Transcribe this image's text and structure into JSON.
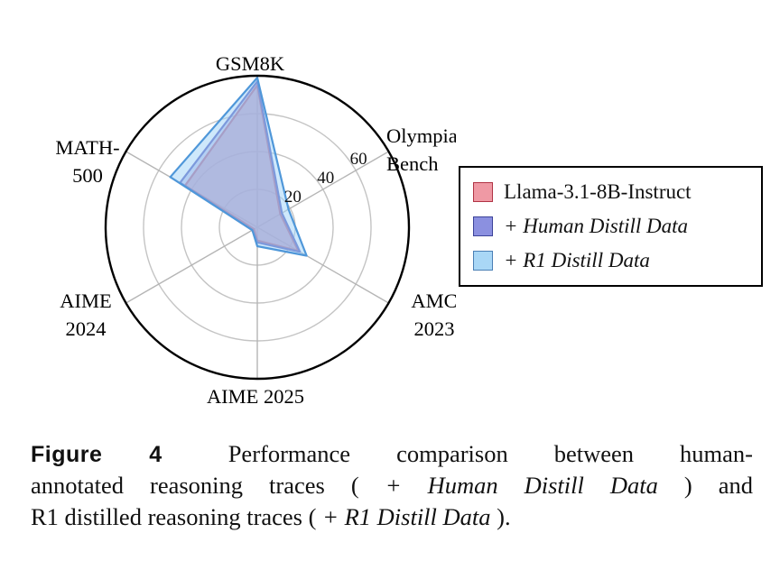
{
  "chart_data": {
    "type": "radar",
    "title": "",
    "axes": [
      "GSM8K",
      "Olympiad Bench",
      "AMC 2023",
      "AIME 2025",
      "AIME 2024",
      "MATH-500"
    ],
    "axis_labels": [
      [
        "GSM8K"
      ],
      [
        "Olympiad",
        "Bench"
      ],
      [
        "AMC",
        "2023"
      ],
      [
        "AIME 2025"
      ],
      [
        "AIME",
        "2024"
      ],
      [
        "MATH-",
        "500"
      ]
    ],
    "rmin": 0,
    "rmax": 80,
    "ticks": [
      20,
      40,
      60
    ],
    "grid": true,
    "legend_position": "right",
    "series": [
      {
        "name": "Llama-3.1-8B-Instruct",
        "values": [
          75,
          14,
          25,
          7,
          2,
          44
        ],
        "stroke": "#c9394a",
        "fill": "rgba(226,112,126,0.60)"
      },
      {
        "name": "+ Human Distill Data",
        "values": [
          77,
          15,
          26,
          8,
          3,
          47
        ],
        "stroke": "#4a50bb",
        "fill": "rgba(128,134,214,0.45)"
      },
      {
        "name": "+ R1 Distill Data",
        "values": [
          79,
          19,
          30,
          10,
          3,
          53
        ],
        "stroke": "#4f97d9",
        "fill": "rgba(166,214,247,0.55)"
      }
    ]
  },
  "legend": {
    "entries": [
      {
        "prefix": "",
        "label": "Llama-3.1-8B-Instruct",
        "italic": false,
        "fill": "#ef99a4",
        "stroke": "#b03344"
      },
      {
        "prefix": "+ ",
        "label": "Human Distill Data",
        "italic": true,
        "fill": "#8b90e0",
        "stroke": "#3c4399"
      },
      {
        "prefix": "+ ",
        "label": "R1 Distill Data",
        "italic": true,
        "fill": "#a9d7f6",
        "stroke": "#4a7fb5"
      }
    ]
  },
  "caption": {
    "figure_label": "Figure 4",
    "full_text": "Figure 4  Performance comparison between human-annotated reasoning traces (+ Human Distill Data) and R1 distilled reasoning traces (+ R1 Distill Data).",
    "lines": [
      [
        {
          "t": "Figure 4",
          "s": "label"
        },
        {
          "t": "Performance comparison between human-",
          "s": "r"
        }
      ],
      [
        {
          "t": "annotated reasoning traces (",
          "s": "r"
        },
        {
          "t": "+ Human Distill Data",
          "s": "i"
        },
        {
          "t": ") and",
          "s": "r"
        }
      ],
      [
        {
          "t": "R1 distilled reasoning traces (",
          "s": "r"
        },
        {
          "t": "+ R1 Distill Data",
          "s": "i"
        },
        {
          "t": ").",
          "s": "r"
        }
      ]
    ]
  }
}
